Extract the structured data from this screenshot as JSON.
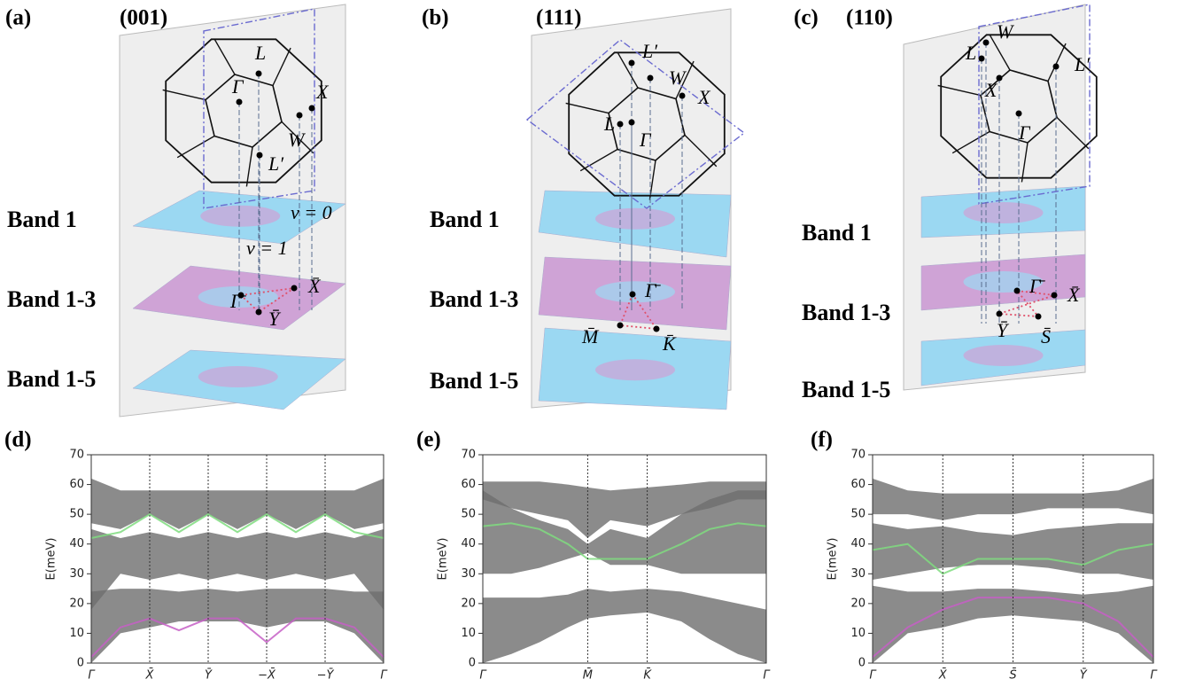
{
  "panels": [
    {
      "label": "(a)",
      "plane": "(001)",
      "band_labels": [
        "Band 1",
        "Band 1-3",
        "Band 1-5"
      ],
      "bz_points": [
        "L",
        "Γ",
        "X",
        "W",
        "L′"
      ],
      "surface_points": [
        "Γ̄",
        "X̄",
        "Ȳ"
      ],
      "annotations": [
        "ν = 0",
        "ν = 1"
      ]
    },
    {
      "label": "(b)",
      "plane": "(111)",
      "band_labels": [
        "Band 1",
        "Band 1-3",
        "Band 1-5"
      ],
      "bz_points": [
        "L′",
        "W",
        "X",
        "L",
        "Γ"
      ],
      "surface_points": [
        "Γ̄",
        "M̄",
        "K̄"
      ]
    },
    {
      "label": "(c)",
      "plane": "(110)",
      "band_labels": [
        "Band 1",
        "Band 1-3",
        "Band 1-5"
      ],
      "bz_points": [
        "W",
        "L",
        "L′",
        "X",
        "Γ"
      ],
      "surface_points": [
        "Γ̄",
        "X̄",
        "Ȳ",
        "S̄"
      ]
    }
  ],
  "chart_data": [
    {
      "type": "band",
      "label": "(d)",
      "ylabel": "E(meV)",
      "ylim": [
        0,
        70
      ],
      "yticks": [
        0,
        10,
        20,
        30,
        40,
        50,
        60,
        70
      ],
      "xlim": [
        0,
        5
      ],
      "xticks": [
        {
          "value": 0,
          "label": "Γ"
        },
        {
          "value": 1,
          "label": "X̄"
        },
        {
          "value": 2,
          "label": "Ȳ"
        },
        {
          "value": 3,
          "label": "−X̄"
        },
        {
          "value": 4,
          "label": "−Ȳ"
        },
        {
          "value": 5,
          "label": "Γ"
        }
      ],
      "x": [
        0,
        0.5,
        1,
        1.5,
        2,
        2.5,
        3,
        3.5,
        4,
        4.5,
        5
      ],
      "bands": [
        {
          "color": "#6e6e6e",
          "values": [
            24,
            25,
            25,
            24,
            25,
            24,
            25,
            25,
            25,
            24,
            24
          ],
          "lows": [
            0,
            10,
            12,
            14,
            14,
            14,
            12,
            14,
            14,
            10,
            0
          ]
        },
        {
          "color": "#6e6e6e",
          "values": [
            45,
            42,
            44,
            42,
            44,
            42,
            44,
            42,
            44,
            42,
            45
          ],
          "lows": [
            18,
            30,
            28,
            30,
            28,
            30,
            28,
            30,
            28,
            30,
            18
          ]
        },
        {
          "color": "#6e6e6e",
          "values": [
            62,
            58,
            58,
            58,
            58,
            58,
            58,
            58,
            58,
            58,
            62
          ],
          "lows": [
            47,
            45,
            50,
            45,
            50,
            45,
            50,
            45,
            50,
            45,
            47
          ]
        }
      ],
      "series": [
        {
          "color": "#7fdc7f",
          "values": [
            42,
            44,
            50,
            44,
            50,
            44,
            50,
            44,
            50,
            44,
            42
          ]
        },
        {
          "color": "#c65fc6",
          "values": [
            2,
            12,
            15,
            11,
            15,
            15,
            7,
            15,
            15,
            12,
            2
          ]
        }
      ]
    },
    {
      "type": "band",
      "label": "(e)",
      "ylabel": "E(meV)",
      "ylim": [
        0,
        70
      ],
      "yticks": [
        0,
        10,
        20,
        30,
        40,
        50,
        60,
        70
      ],
      "xlim": [
        0,
        1
      ],
      "xticks": [
        {
          "value": 0,
          "label": "Γ"
        },
        {
          "value": 0.37,
          "label": "M̄"
        },
        {
          "value": 0.58,
          "label": "K̄"
        },
        {
          "value": 1,
          "label": "Γ"
        }
      ],
      "x": [
        0,
        0.1,
        0.2,
        0.3,
        0.37,
        0.45,
        0.58,
        0.7,
        0.8,
        0.9,
        1
      ],
      "bands": [
        {
          "color": "#6e6e6e",
          "values": [
            22,
            22,
            22,
            23,
            25,
            24,
            25,
            24,
            22,
            20,
            18
          ],
          "lows": [
            0,
            3,
            7,
            12,
            15,
            16,
            17,
            14,
            8,
            3,
            0
          ]
        },
        {
          "color": "#6e6e6e",
          "values": [
            58,
            52,
            48,
            45,
            40,
            45,
            42,
            50,
            55,
            58,
            58
          ],
          "lows": [
            30,
            30,
            32,
            35,
            37,
            33,
            33,
            30,
            30,
            30,
            30
          ]
        },
        {
          "color": "#6e6e6e",
          "values": [
            61,
            61,
            61,
            60,
            59,
            58,
            59,
            60,
            61,
            61,
            61
          ],
          "lows": [
            55,
            52,
            50,
            48,
            42,
            48,
            46,
            50,
            52,
            55,
            55
          ]
        }
      ],
      "series": [
        {
          "color": "#7fdc7f",
          "values": [
            46,
            47,
            45,
            40,
            35,
            35,
            35,
            40,
            45,
            47,
            46
          ]
        }
      ]
    },
    {
      "type": "band",
      "label": "(f)",
      "ylabel": "E(meV)",
      "ylim": [
        0,
        70
      ],
      "yticks": [
        0,
        10,
        20,
        30,
        40,
        50,
        60,
        70
      ],
      "xlim": [
        0,
        4
      ],
      "xticks": [
        {
          "value": 0,
          "label": "Γ"
        },
        {
          "value": 1,
          "label": "X̄"
        },
        {
          "value": 2,
          "label": "S̄"
        },
        {
          "value": 3,
          "label": "Ȳ"
        },
        {
          "value": 4,
          "label": "Γ"
        }
      ],
      "x": [
        0,
        0.5,
        1,
        1.5,
        2,
        2.5,
        3,
        3.5,
        4
      ],
      "bands": [
        {
          "color": "#6e6e6e",
          "values": [
            26,
            24,
            24,
            25,
            25,
            24,
            23,
            24,
            26
          ],
          "lows": [
            0,
            10,
            12,
            15,
            16,
            15,
            14,
            10,
            0
          ]
        },
        {
          "color": "#6e6e6e",
          "values": [
            47,
            45,
            46,
            44,
            43,
            45,
            46,
            47,
            47
          ],
          "lows": [
            28,
            30,
            32,
            33,
            33,
            32,
            30,
            30,
            28
          ]
        },
        {
          "color": "#6e6e6e",
          "values": [
            62,
            58,
            57,
            57,
            57,
            57,
            57,
            58,
            62
          ],
          "lows": [
            50,
            50,
            48,
            50,
            50,
            52,
            52,
            52,
            50
          ]
        }
      ],
      "series": [
        {
          "color": "#7fdc7f",
          "values": [
            38,
            40,
            30,
            35,
            35,
            35,
            33,
            38,
            40
          ]
        },
        {
          "color": "#c65fc6",
          "values": [
            2,
            12,
            18,
            22,
            22,
            22,
            20,
            14,
            2
          ]
        }
      ]
    }
  ]
}
